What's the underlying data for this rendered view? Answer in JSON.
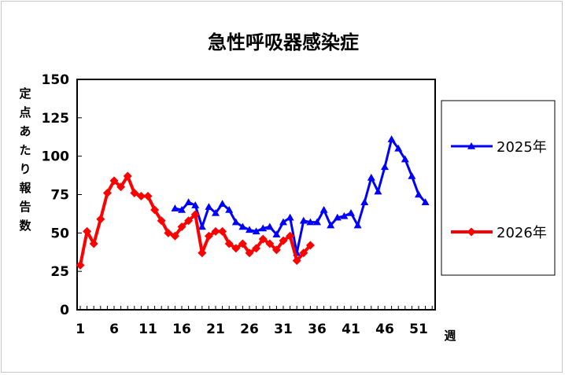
{
  "chart_data": {
    "type": "line",
    "title": "急性呼吸器感染症",
    "ylabel": "定点あたり報告数",
    "xlabel": "週",
    "ylim": [
      0,
      150
    ],
    "xlim": [
      1,
      53
    ],
    "yticks": [
      0,
      25,
      50,
      75,
      100,
      125,
      150
    ],
    "xticks": [
      1,
      6,
      11,
      16,
      21,
      26,
      31,
      36,
      41,
      46,
      51
    ],
    "grid": false,
    "legend_position": "right",
    "series": [
      {
        "name": "2025年",
        "color": "#0000ff",
        "marker": "triangle",
        "x": [
          15,
          16,
          17,
          18,
          19,
          20,
          21,
          22,
          23,
          24,
          25,
          26,
          27,
          28,
          29,
          30,
          31,
          32,
          33,
          34,
          35,
          36,
          37,
          38,
          39,
          40,
          41,
          42,
          43,
          44,
          45,
          46,
          47,
          48,
          49,
          50,
          51,
          52
        ],
        "y": [
          66,
          65,
          70,
          68,
          54,
          67,
          63,
          69,
          65,
          57,
          54,
          52,
          51,
          53,
          54,
          49,
          57,
          60,
          37,
          58,
          57,
          57,
          65,
          55,
          60,
          61,
          63,
          55,
          70,
          86,
          77,
          93,
          111,
          105,
          98,
          87,
          75,
          70
        ]
      },
      {
        "name": "2026年",
        "color": "#ff0000",
        "marker": "diamond",
        "x": [
          1,
          2,
          3,
          4,
          5,
          6,
          7,
          8,
          9,
          10,
          11,
          12,
          13,
          14,
          15,
          16,
          17,
          18,
          19,
          20,
          21,
          22,
          23,
          24,
          25,
          26,
          27,
          28,
          29,
          30,
          31,
          32,
          33,
          34,
          35
        ],
        "y": [
          29,
          51,
          43,
          59,
          76,
          84,
          80,
          87,
          76,
          74,
          74,
          65,
          58,
          50,
          48,
          54,
          58,
          62,
          37,
          48,
          51,
          51,
          43,
          40,
          43,
          37,
          40,
          46,
          43,
          39,
          45,
          48,
          32,
          37,
          42
        ]
      }
    ]
  }
}
